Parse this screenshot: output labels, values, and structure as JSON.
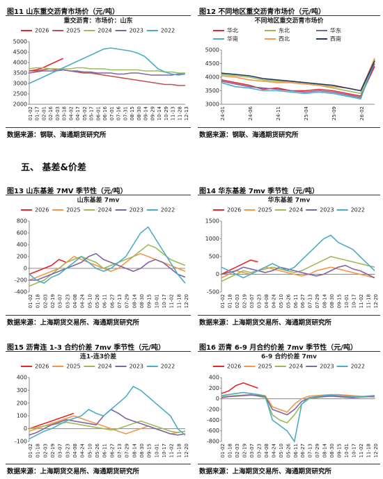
{
  "section": "五、 基差&价差",
  "figures": [
    {
      "caption": "图11  山东重交沥青市场价（元/吨）",
      "source": "数据来源：钢联、海通期货研究所"
    },
    {
      "caption": "图12  不同地区重交沥青市场价（元/吨）",
      "source": "数据来源：钢联、海通期货研究所"
    },
    {
      "caption": "图13  山东基差 7MV 季节性（元/吨）",
      "source": "数据来源：上海期货交易所、海通期货研究所"
    },
    {
      "caption": "图14  华东基差 7mv 季节性（元/吨）",
      "source": "数据来源：上海期货交易所、海通期货研究所"
    },
    {
      "caption": "图15  沥青连 1-3 合约价差 7mv 季节性（元/吨）",
      "source": "数据来源：上海期货交易所、海通期货研究所"
    },
    {
      "caption": "图16  沥青 6-9 月合约价差 7mv 季节性（元/吨）",
      "source": "数据来源：上海期货交易所、海通期货研究所"
    }
  ],
  "chart_data": [
    {
      "type": "line",
      "title": "重交沥青：市场价：山东",
      "categories": [
        "01-02",
        "01-17",
        "02-01",
        "02-16",
        "03-03",
        "03-18",
        "04-02",
        "04-17",
        "05-02",
        "05-17",
        "06-01",
        "06-16",
        "07-01",
        "07-16",
        "07-31",
        "08-15",
        "08-30",
        "09-14",
        "09-29",
        "10-14",
        "10-29",
        "11-13",
        "11-28",
        "12-13"
      ],
      "ylim": [
        2000,
        5000
      ],
      "yticks": [
        2000,
        2500,
        3000,
        3500,
        4000,
        4500,
        5000
      ],
      "series": [
        {
          "name": "2026",
          "color": "#e8262a",
          "values": [
            3600,
            3650,
            3750,
            3900,
            4050,
            4200,
            null,
            null,
            null,
            null,
            null,
            null,
            null,
            null,
            null,
            null,
            null,
            null,
            null,
            null,
            null,
            null,
            null,
            null
          ]
        },
        {
          "name": "2025",
          "color": "#c0504d",
          "values": [
            3600,
            3600,
            3650,
            3700,
            3650,
            3650,
            3600,
            3550,
            3500,
            3500,
            3450,
            3400,
            3350,
            3300,
            3250,
            3200,
            3150,
            3100,
            3050,
            3000,
            2950,
            2950,
            2900,
            2900
          ]
        },
        {
          "name": "2024",
          "color": "#9bbb59",
          "values": [
            3700,
            3750,
            3750,
            3700,
            3700,
            3700,
            3700,
            3750,
            3750,
            3700,
            3700,
            3700,
            3650,
            3650,
            3650,
            3650,
            3650,
            3600,
            3600,
            3600,
            3550,
            3550,
            3500,
            3500
          ]
        },
        {
          "name": "2023",
          "color": "#8064a2",
          "values": [
            3500,
            3550,
            3600,
            3600,
            3600,
            3650,
            3600,
            3600,
            3550,
            3550,
            3500,
            3500,
            3500,
            3450,
            3450,
            3500,
            3500,
            3450,
            3400,
            3400,
            3400,
            3400,
            3450,
            3450
          ]
        },
        {
          "name": "2022",
          "color": "#4bacc6",
          "values": [
            3000,
            3150,
            3300,
            3450,
            3600,
            3750,
            3900,
            4050,
            4200,
            4350,
            4500,
            4650,
            4700,
            4650,
            4600,
            4550,
            4450,
            4300,
            4000,
            3700,
            3550,
            3450,
            3400,
            3450
          ]
        }
      ]
    },
    {
      "type": "line",
      "title": "不同地区重交沥青市场价",
      "categories": [
        "24-01",
        null,
        "24-06",
        null,
        "24-11",
        null,
        "25-04",
        null,
        "25-09",
        null,
        "26-02",
        null
      ],
      "ylim": [
        3000,
        5000
      ],
      "yticks": [
        3000,
        3500,
        4000,
        4500,
        5000
      ],
      "series": [
        {
          "name": "华北",
          "color": "#e8262a",
          "values": [
            3900,
            3800,
            3700,
            3550,
            3600,
            3500,
            3500,
            3550,
            3500,
            3400,
            3300,
            4400
          ]
        },
        {
          "name": "东北",
          "color": "#9bbb59",
          "values": [
            4100,
            4050,
            4000,
            3900,
            3850,
            3800,
            3750,
            3700,
            3600,
            3500,
            3400,
            4600
          ]
        },
        {
          "name": "华东",
          "color": "#8064a2",
          "values": [
            3850,
            3750,
            3650,
            3600,
            3550,
            3500,
            3450,
            3500,
            3450,
            3350,
            3250,
            4500
          ]
        },
        {
          "name": "华南",
          "color": "#4bacc6",
          "values": [
            3800,
            3650,
            3600,
            3500,
            3500,
            3450,
            3400,
            3450,
            3400,
            3300,
            3200,
            4650
          ]
        },
        {
          "name": "西北",
          "color": "#f79646",
          "values": [
            4050,
            4000,
            3900,
            3850,
            3800,
            3800,
            3750,
            3700,
            3650,
            3600,
            3500,
            4700
          ]
        },
        {
          "name": "西南",
          "color": "#1f3864",
          "values": [
            4150,
            4100,
            4050,
            3950,
            3900,
            3850,
            3800,
            3750,
            3700,
            3600,
            3500,
            4600
          ]
        }
      ]
    },
    {
      "type": "line",
      "title": "山东基差 7mv",
      "categories": [
        "01-02",
        "01-18",
        "02-03",
        "02-19",
        "03-07",
        "03-23",
        "04-08",
        "04-24",
        "05-10",
        "05-26",
        "06-11",
        "06-27",
        "07-13",
        "07-29",
        "08-14",
        "08-30",
        "09-15",
        "10-01",
        "10-17",
        "11-02",
        "11-18",
        "12-20"
      ],
      "ylim": [
        -400,
        800
      ],
      "yticks": [
        -400,
        -200,
        0,
        200,
        400,
        600,
        800
      ],
      "series": [
        {
          "name": "2026",
          "color": "#e8262a",
          "values": [
            -100,
            -50,
            0,
            50,
            150,
            100,
            null,
            null,
            null,
            null,
            null,
            null,
            null,
            null,
            null,
            null,
            null,
            null,
            null,
            null,
            null,
            null
          ]
        },
        {
          "name": "2025",
          "color": "#f79646",
          "values": [
            -200,
            -150,
            -100,
            -50,
            0,
            100,
            200,
            150,
            100,
            50,
            0,
            -50,
            0,
            100,
            200,
            250,
            200,
            150,
            100,
            50,
            0,
            -50
          ]
        },
        {
          "name": "2024",
          "color": "#9bbb59",
          "values": [
            -300,
            -250,
            -200,
            -100,
            0,
            100,
            150,
            200,
            150,
            100,
            0,
            50,
            100,
            150,
            200,
            300,
            400,
            350,
            250,
            150,
            100,
            50
          ]
        },
        {
          "name": "2023",
          "color": "#8064a2",
          "values": [
            -200,
            -200,
            -150,
            -100,
            -50,
            0,
            50,
            100,
            200,
            250,
            150,
            100,
            50,
            0,
            -50,
            0,
            100,
            150,
            100,
            0,
            -100,
            -150
          ]
        },
        {
          "name": "2022",
          "color": "#4bacc6",
          "values": [
            -100,
            -200,
            -250,
            -150,
            -100,
            0,
            100,
            200,
            100,
            0,
            -50,
            0,
            100,
            200,
            400,
            600,
            700,
            500,
            300,
            100,
            -100,
            -250
          ]
        }
      ]
    },
    {
      "type": "line",
      "title": "华东基差 7mv",
      "categories": [
        "01-02",
        "01-18",
        "02-03",
        "02-19",
        "03-07",
        "03-23",
        "04-08",
        "04-24",
        "05-10",
        "05-26",
        "06-11",
        "06-27",
        "07-13",
        "07-29",
        "08-14",
        "08-30",
        "09-15",
        "10-01",
        "10-17",
        "11-02",
        "11-18",
        "12-20"
      ],
      "ylim": [
        -500,
        1500
      ],
      "yticks": [
        -500,
        0,
        500,
        1000,
        1500
      ],
      "series": [
        {
          "name": "2026",
          "color": "#e8262a",
          "values": [
            0,
            100,
            200,
            300,
            400,
            350,
            null,
            null,
            null,
            null,
            null,
            null,
            null,
            null,
            null,
            null,
            null,
            null,
            null,
            null,
            null,
            null
          ]
        },
        {
          "name": "2025",
          "color": "#f79646",
          "values": [
            -100,
            0,
            100,
            50,
            0,
            100,
            200,
            150,
            100,
            50,
            0,
            -50,
            0,
            100,
            150,
            200,
            150,
            100,
            50,
            0,
            -50,
            -100
          ]
        },
        {
          "name": "2024",
          "color": "#9bbb59",
          "values": [
            -200,
            -100,
            0,
            100,
            50,
            100,
            150,
            200,
            150,
            100,
            50,
            100,
            200,
            300,
            400,
            500,
            450,
            400,
            350,
            300,
            250,
            200
          ]
        },
        {
          "name": "2023",
          "color": "#8064a2",
          "values": [
            0,
            50,
            100,
            200,
            150,
            100,
            50,
            100,
            200,
            150,
            100,
            50,
            0,
            -50,
            0,
            100,
            200,
            250,
            150,
            100,
            0,
            -100
          ]
        },
        {
          "name": "2022",
          "color": "#4bacc6",
          "values": [
            200,
            100,
            0,
            -100,
            0,
            100,
            200,
            300,
            200,
            100,
            200,
            400,
            600,
            800,
            1000,
            1100,
            900,
            800,
            700,
            500,
            300,
            100
          ]
        }
      ]
    },
    {
      "type": "line",
      "title": "连1-连3价差",
      "categories": [
        "01-02",
        "01-18",
        "02-03",
        "02-19",
        "03-07",
        "03-23",
        "04-08",
        "04-24",
        "05-10",
        "05-26",
        "06-11",
        "06-27",
        "07-13",
        "07-29",
        "08-14",
        "08-30",
        "09-15",
        "10-01",
        "10-17",
        "11-02",
        "11-18",
        "12-20"
      ],
      "ylim": [
        -100,
        400
      ],
      "yticks": [
        -100,
        0,
        100,
        200,
        300,
        400
      ],
      "series": [
        {
          "name": "2026",
          "color": "#e8262a",
          "values": [
            0,
            20,
            40,
            60,
            80,
            100,
            120,
            null,
            null,
            null,
            null,
            null,
            null,
            null,
            null,
            null,
            null,
            null,
            null,
            null,
            null,
            null
          ]
        },
        {
          "name": "2025",
          "color": "#f79646",
          "values": [
            -20,
            0,
            20,
            40,
            60,
            80,
            100,
            80,
            60,
            40,
            20,
            0,
            -20,
            -40,
            -20,
            0,
            20,
            0,
            -20,
            -40,
            -30,
            -20
          ]
        },
        {
          "name": "2024",
          "color": "#9bbb59",
          "values": [
            0,
            10,
            20,
            30,
            40,
            50,
            40,
            30,
            20,
            10,
            0,
            -10,
            0,
            20,
            40,
            60,
            40,
            20,
            0,
            -20,
            -30,
            -20
          ]
        },
        {
          "name": "2023",
          "color": "#8064a2",
          "values": [
            -50,
            -30,
            0,
            30,
            50,
            70,
            60,
            50,
            40,
            30,
            100,
            150,
            120,
            80,
            60,
            40,
            20,
            0,
            -20,
            -40,
            -50,
            -40
          ]
        },
        {
          "name": "2022",
          "color": "#4bacc6",
          "values": [
            -80,
            -50,
            -20,
            0,
            30,
            60,
            80,
            100,
            150,
            120,
            100,
            150,
            200,
            250,
            330,
            300,
            250,
            200,
            150,
            100,
            0,
            -50
          ]
        }
      ]
    },
    {
      "type": "line",
      "title": "6-9 合约价差 7mv",
      "categories": [
        "01-02",
        "01-18",
        "02-03",
        "02-19",
        "03-07",
        "03-23",
        "04-08",
        "04-24",
        "05-10",
        "05-26",
        "06-11",
        "06-27",
        "07-13",
        "07-29",
        "08-14",
        "08-30",
        "09-15",
        "10-01",
        "10-17",
        "11-02",
        "11-18",
        "12-20"
      ],
      "ylim": [
        -800,
        400
      ],
      "yticks": [
        -800,
        -600,
        -400,
        -200,
        0,
        200,
        400
      ],
      "series": [
        {
          "name": "2026",
          "color": "#e8262a",
          "values": [
            100,
            150,
            250,
            300,
            250,
            200,
            null,
            null,
            null,
            null,
            null,
            null,
            null,
            null,
            null,
            null,
            null,
            null,
            null,
            null,
            null,
            null
          ]
        },
        {
          "name": "2025",
          "color": "#f79646",
          "values": [
            50,
            80,
            100,
            120,
            100,
            80,
            60,
            -150,
            -200,
            -250,
            -100,
            0,
            50,
            60,
            70,
            80,
            80,
            70,
            60,
            50,
            40,
            30
          ]
        },
        {
          "name": "2024",
          "color": "#9bbb59",
          "values": [
            30,
            50,
            60,
            70,
            80,
            50,
            20,
            -300,
            -400,
            -450,
            -300,
            -100,
            0,
            20,
            40,
            50,
            50,
            40,
            30,
            40,
            50,
            60
          ]
        },
        {
          "name": "2023",
          "color": "#8064a2",
          "values": [
            20,
            40,
            50,
            60,
            70,
            60,
            40,
            -200,
            -250,
            -300,
            -200,
            -50,
            20,
            30,
            40,
            50,
            40,
            30,
            20,
            30,
            40,
            50
          ]
        },
        {
          "name": "2022",
          "color": "#4bacc6",
          "values": [
            60,
            80,
            100,
            120,
            100,
            80,
            50,
            -400,
            -500,
            -600,
            -800,
            -100,
            20,
            40,
            60,
            70,
            60,
            50,
            40,
            30,
            50,
            60
          ]
        }
      ]
    }
  ]
}
